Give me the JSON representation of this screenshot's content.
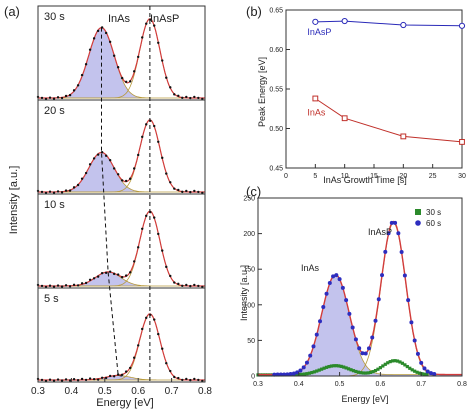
{
  "chart_data": [
    {
      "panel": "(a)",
      "type": "line",
      "xlabel": "Energy [eV]",
      "ylabel": "Intensity [a.u.]",
      "xlim": [
        0.3,
        0.8
      ],
      "x_ticks": [
        "0.3",
        "0.4",
        "0.5",
        "0.6",
        "0.7",
        "0.8"
      ],
      "peak_labels": [
        "InAs",
        "InAsP"
      ],
      "stacked_spectra": [
        {
          "label": "30 s",
          "inas_center": 0.49,
          "inas_height": 0.8,
          "inasp_center": 0.635,
          "inasp_height": 0.9
        },
        {
          "label": "20 s",
          "inas_center": 0.49,
          "inas_height": 0.45,
          "inasp_center": 0.635,
          "inasp_height": 0.82
        },
        {
          "label": "10 s",
          "inas_center": 0.51,
          "inas_height": 0.16,
          "inasp_center": 0.635,
          "inasp_height": 0.85
        },
        {
          "label": "5 s",
          "inas_center": 0.54,
          "inas_height": 0.05,
          "inasp_center": 0.635,
          "inasp_height": 0.75
        }
      ]
    },
    {
      "panel": "(b)",
      "type": "line",
      "xlabel": "InAs Growth Time [s]",
      "ylabel": "Peak Energy [eV]",
      "xlim": [
        0,
        30
      ],
      "ylim": [
        0.45,
        0.65
      ],
      "x_ticks": [
        "0",
        "5",
        "10",
        "15",
        "20",
        "25",
        "30"
      ],
      "y_ticks": [
        "0.45",
        "0.50",
        "0.55",
        "0.60",
        "0.65"
      ],
      "grid": false,
      "series": [
        {
          "name": "InAsP",
          "color": "#2a2ab8",
          "x": [
            5,
            10,
            20,
            30
          ],
          "values": [
            0.635,
            0.636,
            0.631,
            0.63
          ]
        },
        {
          "name": "InAs",
          "color": "#c0302a",
          "x": [
            5,
            10,
            20,
            30
          ],
          "values": [
            0.538,
            0.513,
            0.49,
            0.483
          ]
        }
      ]
    },
    {
      "panel": "(c)",
      "type": "scatter",
      "xlabel": "Energy [eV]",
      "ylabel": "Intensity [a.u.]",
      "xlim": [
        0.3,
        0.8
      ],
      "ylim": [
        0,
        250
      ],
      "x_ticks": [
        "0.3",
        "0.4",
        "0.5",
        "0.6",
        "0.7",
        "0.8"
      ],
      "y_ticks": [
        "0",
        "50",
        "100",
        "150",
        "200",
        "250"
      ],
      "legend_position": "top-right",
      "peak_labels": [
        "InAs",
        "InAsP"
      ],
      "series": [
        {
          "name": "30 s",
          "color": "#2b8a2b",
          "inas_center": 0.49,
          "inas_height": 13,
          "inasp_center": 0.635,
          "inasp_height": 20
        },
        {
          "name": "60 s",
          "color": "#2d2dbf",
          "inas_center": 0.49,
          "inas_height": 140,
          "inasp_center": 0.632,
          "inasp_height": 215
        }
      ]
    }
  ],
  "panel_labels": {
    "a": "(a)",
    "b": "(b)",
    "c": "(c)"
  },
  "colors": {
    "fit": "#d23c3c",
    "fill": "#b8b8ea",
    "component": "#b79a3c",
    "points": "#111111"
  }
}
